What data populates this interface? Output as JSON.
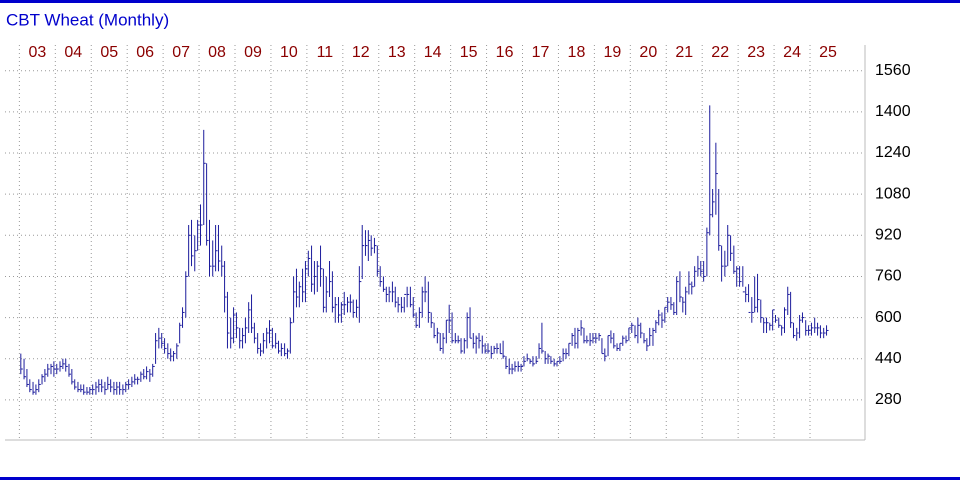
{
  "chart_data": {
    "type": "ohlc",
    "title": "CBT Wheat (Monthly)",
    "color": "#1c1c9c",
    "grid": true,
    "xlim": [
      2002.6,
      2026.53
    ],
    "ylim": [
      124,
      1660
    ],
    "yticks": [
      280,
      440,
      600,
      760,
      920,
      1080,
      1240,
      1400,
      1560
    ],
    "xticks": [
      {
        "value": 2003,
        "label": "03"
      },
      {
        "value": 2004,
        "label": "04"
      },
      {
        "value": 2005,
        "label": "05"
      },
      {
        "value": 2006,
        "label": "06"
      },
      {
        "value": 2007,
        "label": "07"
      },
      {
        "value": 2008,
        "label": "08"
      },
      {
        "value": 2009,
        "label": "09"
      },
      {
        "value": 2010,
        "label": "10"
      },
      {
        "value": 2011,
        "label": "11"
      },
      {
        "value": 2012,
        "label": "12"
      },
      {
        "value": 2013,
        "label": "13"
      },
      {
        "value": 2014,
        "label": "14"
      },
      {
        "value": 2015,
        "label": "15"
      },
      {
        "value": 2016,
        "label": "16"
      },
      {
        "value": 2017,
        "label": "17"
      },
      {
        "value": 2018,
        "label": "18"
      },
      {
        "value": 2019,
        "label": "19"
      },
      {
        "value": 2020,
        "label": "20"
      },
      {
        "value": 2021,
        "label": "21"
      },
      {
        "value": 2022,
        "label": "22"
      },
      {
        "value": 2023,
        "label": "23"
      },
      {
        "value": 2024,
        "label": "24"
      },
      {
        "value": 2025,
        "label": "25"
      }
    ],
    "x": [
      2003.04,
      2003.13,
      2003.21,
      2003.29,
      2003.38,
      2003.46,
      2003.54,
      2003.63,
      2003.71,
      2003.79,
      2003.88,
      2003.96,
      2004.04,
      2004.13,
      2004.21,
      2004.29,
      2004.38,
      2004.46,
      2004.54,
      2004.63,
      2004.71,
      2004.79,
      2004.88,
      2004.96,
      2005.04,
      2005.13,
      2005.21,
      2005.29,
      2005.38,
      2005.46,
      2005.54,
      2005.63,
      2005.71,
      2005.79,
      2005.88,
      2005.96,
      2006.04,
      2006.13,
      2006.21,
      2006.29,
      2006.38,
      2006.46,
      2006.54,
      2006.63,
      2006.71,
      2006.79,
      2006.88,
      2006.96,
      2007.04,
      2007.13,
      2007.21,
      2007.29,
      2007.38,
      2007.46,
      2007.54,
      2007.63,
      2007.71,
      2007.79,
      2007.88,
      2007.96,
      2008.04,
      2008.13,
      2008.21,
      2008.29,
      2008.38,
      2008.46,
      2008.54,
      2008.63,
      2008.71,
      2008.79,
      2008.88,
      2008.96,
      2009.04,
      2009.13,
      2009.21,
      2009.29,
      2009.38,
      2009.46,
      2009.54,
      2009.63,
      2009.71,
      2009.79,
      2009.88,
      2009.96,
      2010.04,
      2010.13,
      2010.21,
      2010.29,
      2010.38,
      2010.46,
      2010.54,
      2010.63,
      2010.71,
      2010.79,
      2010.88,
      2010.96,
      2011.04,
      2011.13,
      2011.21,
      2011.29,
      2011.38,
      2011.46,
      2011.54,
      2011.63,
      2011.71,
      2011.79,
      2011.88,
      2011.96,
      2012.04,
      2012.13,
      2012.21,
      2012.29,
      2012.38,
      2012.46,
      2012.54,
      2012.63,
      2012.71,
      2012.79,
      2012.88,
      2012.96,
      2013.04,
      2013.13,
      2013.21,
      2013.29,
      2013.38,
      2013.46,
      2013.54,
      2013.63,
      2013.71,
      2013.79,
      2013.88,
      2013.96,
      2014.04,
      2014.13,
      2014.21,
      2014.29,
      2014.38,
      2014.46,
      2014.54,
      2014.63,
      2014.71,
      2014.79,
      2014.88,
      2014.96,
      2015.04,
      2015.13,
      2015.21,
      2015.29,
      2015.38,
      2015.46,
      2015.54,
      2015.63,
      2015.71,
      2015.79,
      2015.88,
      2015.96,
      2016.04,
      2016.13,
      2016.21,
      2016.29,
      2016.38,
      2016.46,
      2016.54,
      2016.63,
      2016.71,
      2016.79,
      2016.88,
      2016.96,
      2017.04,
      2017.13,
      2017.21,
      2017.29,
      2017.38,
      2017.46,
      2017.54,
      2017.63,
      2017.71,
      2017.79,
      2017.88,
      2017.96,
      2018.04,
      2018.13,
      2018.21,
      2018.29,
      2018.38,
      2018.46,
      2018.54,
      2018.63,
      2018.71,
      2018.79,
      2018.88,
      2018.96,
      2019.04,
      2019.13,
      2019.21,
      2019.29,
      2019.38,
      2019.46,
      2019.54,
      2019.63,
      2019.71,
      2019.79,
      2019.88,
      2019.96,
      2020.04,
      2020.13,
      2020.21,
      2020.29,
      2020.38,
      2020.46,
      2020.54,
      2020.63,
      2020.71,
      2020.79,
      2020.88,
      2020.96,
      2021.04,
      2021.13,
      2021.21,
      2021.29,
      2021.38,
      2021.46,
      2021.54,
      2021.63,
      2021.71,
      2021.79,
      2021.88,
      2021.96,
      2022.04,
      2022.13,
      2022.21,
      2022.29,
      2022.38,
      2022.46,
      2022.54,
      2022.63,
      2022.71,
      2022.79,
      2022.88,
      2022.96,
      2023.04,
      2023.13,
      2023.21,
      2023.29,
      2023.38,
      2023.46,
      2023.54,
      2023.63,
      2023.71,
      2023.79,
      2023.88,
      2023.96,
      2024.04,
      2024.13,
      2024.21,
      2024.29,
      2024.38,
      2024.46,
      2024.54,
      2024.63,
      2024.71,
      2024.79,
      2024.88,
      2024.96,
      2025.04,
      2025.13,
      2025.21,
      2025.29,
      2025.38,
      2025.46
    ],
    "high": [
      460,
      440,
      400,
      360,
      350,
      340,
      360,
      380,
      400,
      420,
      420,
      430,
      420,
      430,
      440,
      440,
      420,
      400,
      360,
      350,
      340,
      340,
      330,
      330,
      340,
      350,
      360,
      360,
      350,
      370,
      360,
      350,
      350,
      350,
      340,
      350,
      360,
      370,
      380,
      370,
      390,
      400,
      410,
      400,
      420,
      540,
      560,
      540,
      520,
      500,
      480,
      470,
      500,
      580,
      640,
      780,
      960,
      980,
      920,
      980,
      1040,
      1330,
      1200,
      980,
      900,
      960,
      960,
      880,
      820,
      700,
      600,
      640,
      620,
      560,
      560,
      600,
      660,
      690,
      580,
      540,
      500,
      540,
      560,
      590,
      560,
      540,
      510,
      500,
      500,
      480,
      600,
      760,
      790,
      740,
      790,
      820,
      860,
      880,
      820,
      820,
      880,
      790,
      760,
      820,
      780,
      680,
      680,
      660,
      700,
      680,
      690,
      670,
      670,
      800,
      960,
      940,
      940,
      920,
      910,
      880,
      800,
      760,
      720,
      720,
      740,
      720,
      680,
      680,
      680,
      720,
      720,
      680,
      620,
      640,
      720,
      760,
      740,
      620,
      580,
      560,
      540,
      540,
      590,
      650,
      620,
      540,
      530,
      520,
      520,
      620,
      640,
      540,
      530,
      540,
      530,
      500,
      500,
      490,
      490,
      500,
      500,
      510,
      450,
      440,
      420,
      430,
      430,
      420,
      450,
      460,
      440,
      450,
      450,
      500,
      580,
      470,
      460,
      450,
      440,
      430,
      450,
      480,
      480,
      500,
      540,
      560,
      560,
      590,
      560,
      530,
      540,
      540,
      540,
      540,
      520,
      480,
      530,
      550,
      540,
      500,
      500,
      530,
      530,
      560,
      580,
      570,
      600,
      580,
      540,
      520,
      560,
      560,
      590,
      630,
      620,
      640,
      680,
      680,
      660,
      760,
      780,
      680,
      720,
      780,
      740,
      800,
      840,
      820,
      820,
      950,
      1425,
      1100,
      1280,
      1100,
      880,
      860,
      960,
      920,
      880,
      800,
      800,
      800,
      720,
      730,
      680,
      760,
      770,
      670,
      600,
      600,
      580,
      630,
      610,
      600,
      570,
      640,
      720,
      700,
      580,
      560,
      610,
      620,
      590,
      570,
      580,
      600,
      580,
      570,
      560,
      570
    ],
    "low": [
      380,
      360,
      330,
      310,
      300,
      300,
      310,
      340,
      350,
      370,
      380,
      370,
      380,
      390,
      400,
      390,
      370,
      340,
      320,
      310,
      310,
      300,
      300,
      300,
      300,
      300,
      310,
      310,
      300,
      320,
      310,
      300,
      300,
      300,
      300,
      310,
      320,
      330,
      340,
      340,
      350,
      360,
      360,
      350,
      370,
      420,
      480,
      480,
      460,
      440,
      430,
      430,
      440,
      500,
      560,
      600,
      760,
      800,
      780,
      860,
      880,
      960,
      880,
      760,
      760,
      780,
      780,
      760,
      620,
      480,
      480,
      500,
      520,
      480,
      480,
      500,
      540,
      540,
      500,
      460,
      450,
      460,
      480,
      500,
      480,
      480,
      460,
      450,
      450,
      440,
      460,
      580,
      640,
      640,
      660,
      660,
      760,
      700,
      690,
      700,
      720,
      620,
      620,
      680,
      620,
      580,
      580,
      580,
      610,
      620,
      620,
      600,
      600,
      580,
      750,
      840,
      820,
      840,
      850,
      760,
      720,
      700,
      660,
      660,
      660,
      640,
      620,
      620,
      620,
      640,
      640,
      600,
      560,
      560,
      600,
      660,
      580,
      560,
      520,
      500,
      470,
      460,
      500,
      540,
      500,
      500,
      500,
      460,
      460,
      480,
      520,
      480,
      460,
      480,
      460,
      460,
      460,
      440,
      460,
      460,
      460,
      440,
      400,
      380,
      380,
      390,
      390,
      390,
      410,
      430,
      420,
      410,
      420,
      440,
      460,
      420,
      420,
      420,
      410,
      410,
      420,
      430,
      440,
      450,
      490,
      480,
      480,
      530,
      500,
      500,
      490,
      500,
      500,
      510,
      460,
      430,
      450,
      500,
      480,
      470,
      470,
      490,
      500,
      510,
      540,
      520,
      500,
      520,
      500,
      470,
      490,
      490,
      540,
      570,
      560,
      580,
      620,
      630,
      610,
      610,
      660,
      620,
      610,
      690,
      690,
      720,
      760,
      760,
      740,
      760,
      920,
      990,
      1000,
      860,
      740,
      760,
      800,
      820,
      770,
      720,
      720,
      720,
      660,
      660,
      580,
      620,
      620,
      580,
      540,
      540,
      550,
      550,
      580,
      560,
      530,
      540,
      610,
      560,
      520,
      510,
      520,
      580,
      530,
      530,
      530,
      540,
      530,
      520,
      520,
      530
    ],
    "close": [
      400,
      370,
      340,
      320,
      310,
      320,
      340,
      370,
      380,
      400,
      410,
      400,
      400,
      410,
      420,
      410,
      380,
      350,
      330,
      320,
      320,
      310,
      310,
      320,
      320,
      330,
      340,
      330,
      320,
      340,
      330,
      320,
      330,
      320,
      320,
      340,
      340,
      350,
      360,
      360,
      380,
      370,
      390,
      380,
      410,
      510,
      520,
      500,
      480,
      460,
      450,
      460,
      490,
      570,
      620,
      760,
      920,
      840,
      860,
      960,
      960,
      1200,
      900,
      800,
      800,
      860,
      820,
      800,
      680,
      540,
      520,
      610,
      560,
      510,
      530,
      560,
      630,
      560,
      520,
      480,
      470,
      510,
      540,
      550,
      490,
      500,
      470,
      480,
      460,
      470,
      580,
      700,
      680,
      720,
      700,
      790,
      830,
      730,
      760,
      800,
      790,
      640,
      700,
      740,
      640,
      650,
      610,
      650,
      650,
      660,
      660,
      620,
      640,
      740,
      880,
      880,
      900,
      870,
      880,
      780,
      740,
      710,
      690,
      700,
      700,
      660,
      650,
      640,
      690,
      690,
      650,
      610,
      570,
      620,
      700,
      700,
      620,
      580,
      530,
      540,
      480,
      520,
      590,
      590,
      510,
      510,
      510,
      470,
      510,
      600,
      520,
      500,
      520,
      510,
      490,
      470,
      470,
      460,
      480,
      480,
      460,
      450,
      410,
      400,
      400,
      410,
      410,
      410,
      430,
      440,
      430,
      420,
      430,
      480,
      470,
      440,
      450,
      430,
      420,
      430,
      430,
      460,
      460,
      500,
      530,
      500,
      550,
      560,
      510,
      510,
      510,
      520,
      520,
      530,
      460,
      450,
      530,
      520,
      490,
      480,
      500,
      520,
      510,
      560,
      570,
      530,
      570,
      540,
      510,
      490,
      530,
      550,
      580,
      610,
      590,
      640,
      660,
      650,
      620,
      740,
      680,
      660,
      700,
      730,
      720,
      780,
      790,
      780,
      760,
      930,
      1000,
      1050,
      1160,
      880,
      800,
      800,
      920,
      850,
      780,
      790,
      740,
      700,
      690,
      620,
      620,
      640,
      670,
      600,
      580,
      580,
      570,
      630,
      590,
      570,
      560,
      630,
      690,
      580,
      530,
      540,
      590,
      600,
      550,
      550,
      560,
      560,
      560,
      540,
      540,
      550
    ]
  }
}
